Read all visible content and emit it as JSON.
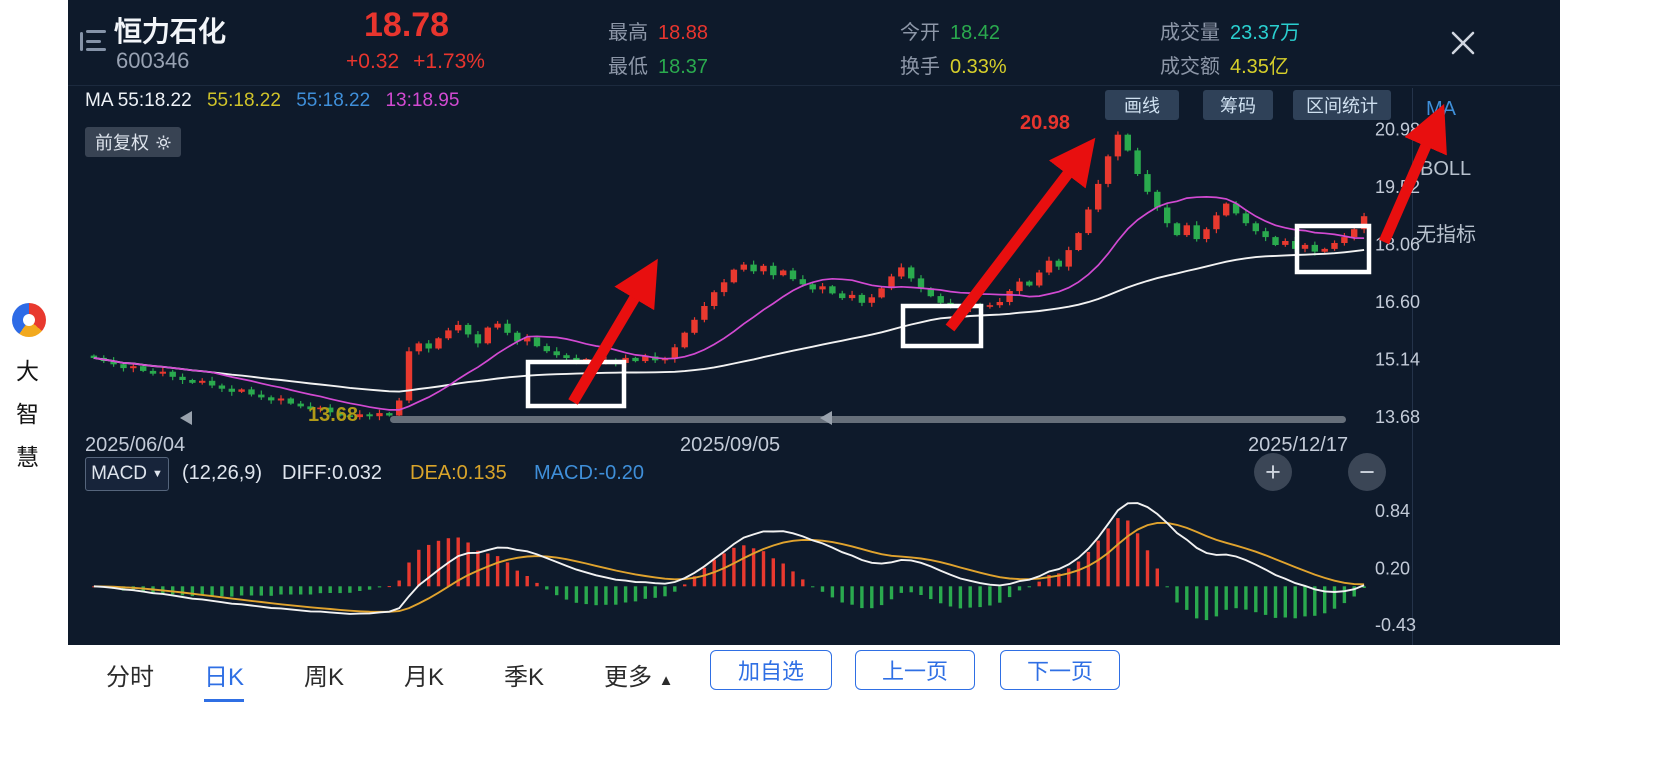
{
  "brand": {
    "name_chars": [
      "大",
      "智",
      "慧"
    ]
  },
  "header": {
    "stock_name": "恒力石化",
    "stock_code": "600346",
    "price": "18.78",
    "change": "+0.32",
    "change_pct": "+1.73%",
    "high_label": "最高",
    "high": "18.88",
    "low_label": "最低",
    "low": "18.37",
    "open_label": "今开",
    "open": "18.42",
    "turnover_label": "换手",
    "turnover": "0.33%",
    "volume_label": "成交量",
    "volume": "23.37万",
    "amount_label": "成交额",
    "amount": "4.35亿"
  },
  "ma_bar": {
    "seg1": "MA 55:18.22",
    "seg2": "55:18.22",
    "seg3": "55:18.22",
    "seg4": "13:18.95"
  },
  "toolbar": {
    "draw_line": "画线",
    "chips": "筹码",
    "range_stats": "区间统计"
  },
  "indicator_panel": {
    "ma": "MA",
    "boll": "BOLL",
    "none": "无指标"
  },
  "chart_overlay": {
    "adjust": "前复权",
    "peak": "20.98",
    "trough": "13.68"
  },
  "x_axis": {
    "d1": "2025/06/04",
    "d2": "2025/09/05",
    "d3": "2025/12/17"
  },
  "macd_bar": {
    "name": "MACD",
    "caret": "▼",
    "params": "(12,26,9)",
    "diff": "DIFF:0.032",
    "dea": "DEA:0.135",
    "macd": "MACD:-0.20"
  },
  "zoom": {
    "in": "+",
    "out": "−"
  },
  "bottom": {
    "minute": "分时",
    "daily": "日K",
    "weekly": "周K",
    "monthly": "月K",
    "quarterly": "季K",
    "more": "更多",
    "more_caret": "▲",
    "add": "加自选",
    "prev": "上一页",
    "next": "下一页"
  },
  "chart_data": {
    "type": "candlestick+macd",
    "title": "恒力石化 600346 日K 前复权",
    "x_dates": [
      "2025/06/04",
      "2025/09/05",
      "2025/12/17"
    ],
    "y_axis_labels": [
      20.98,
      19.52,
      18.06,
      16.6,
      15.14,
      13.68
    ],
    "price_range": [
      13.35,
      21.35
    ],
    "peak_price": 20.98,
    "trough_price": 13.68,
    "ma_periods": [
      13,
      55
    ],
    "macd_params": [
      12,
      26,
      9
    ],
    "macd_axis_labels": [
      0.84,
      0.2,
      -0.43
    ],
    "macd_range": [
      -0.62,
      1.05
    ],
    "macd_last": {
      "diff": 0.032,
      "dea": 0.135,
      "macd": -0.2
    },
    "colors": {
      "up": "#e8392f",
      "down": "#2aaa4e",
      "ma_fast": "#d24ad2",
      "ma_slow": "#f2f2f2",
      "dif": "#f2f2f2",
      "dea": "#e0a32e"
    },
    "closes": [
      15.18,
      15.1,
      15.02,
      14.92,
      14.97,
      14.85,
      14.78,
      14.83,
      14.7,
      14.62,
      14.55,
      14.6,
      14.48,
      14.4,
      14.32,
      14.38,
      14.25,
      14.18,
      14.1,
      14.15,
      14.02,
      13.95,
      13.88,
      13.92,
      13.8,
      13.72,
      13.68,
      13.75,
      13.7,
      13.78,
      13.72,
      14.1,
      15.35,
      15.55,
      15.42,
      15.68,
      15.88,
      16.02,
      15.78,
      15.55,
      15.95,
      16.05,
      15.82,
      15.6,
      15.7,
      15.48,
      15.35,
      15.25,
      15.18,
      15.12,
      15.15,
      15.08,
      15.12,
      15.05,
      15.18,
      15.1,
      15.22,
      15.12,
      15.16,
      15.45,
      15.82,
      16.15,
      16.5,
      16.85,
      17.1,
      17.42,
      17.55,
      17.38,
      17.52,
      17.28,
      17.4,
      17.18,
      17.05,
      16.92,
      17.0,
      16.82,
      16.7,
      16.78,
      16.58,
      16.72,
      16.95,
      17.25,
      17.48,
      17.2,
      16.95,
      16.75,
      16.58,
      16.5,
      16.45,
      16.55,
      16.48,
      16.52,
      16.6,
      16.88,
      17.12,
      17.02,
      17.35,
      17.65,
      17.5,
      17.92,
      18.35,
      18.95,
      19.6,
      20.3,
      20.85,
      20.45,
      19.85,
      19.4,
      19.0,
      18.6,
      18.3,
      18.55,
      18.2,
      18.45,
      18.8,
      19.1,
      18.85,
      18.6,
      18.4,
      18.25,
      18.05,
      18.15,
      17.95,
      18.05,
      17.88,
      17.95,
      18.1,
      18.25,
      18.45,
      18.78
    ]
  }
}
